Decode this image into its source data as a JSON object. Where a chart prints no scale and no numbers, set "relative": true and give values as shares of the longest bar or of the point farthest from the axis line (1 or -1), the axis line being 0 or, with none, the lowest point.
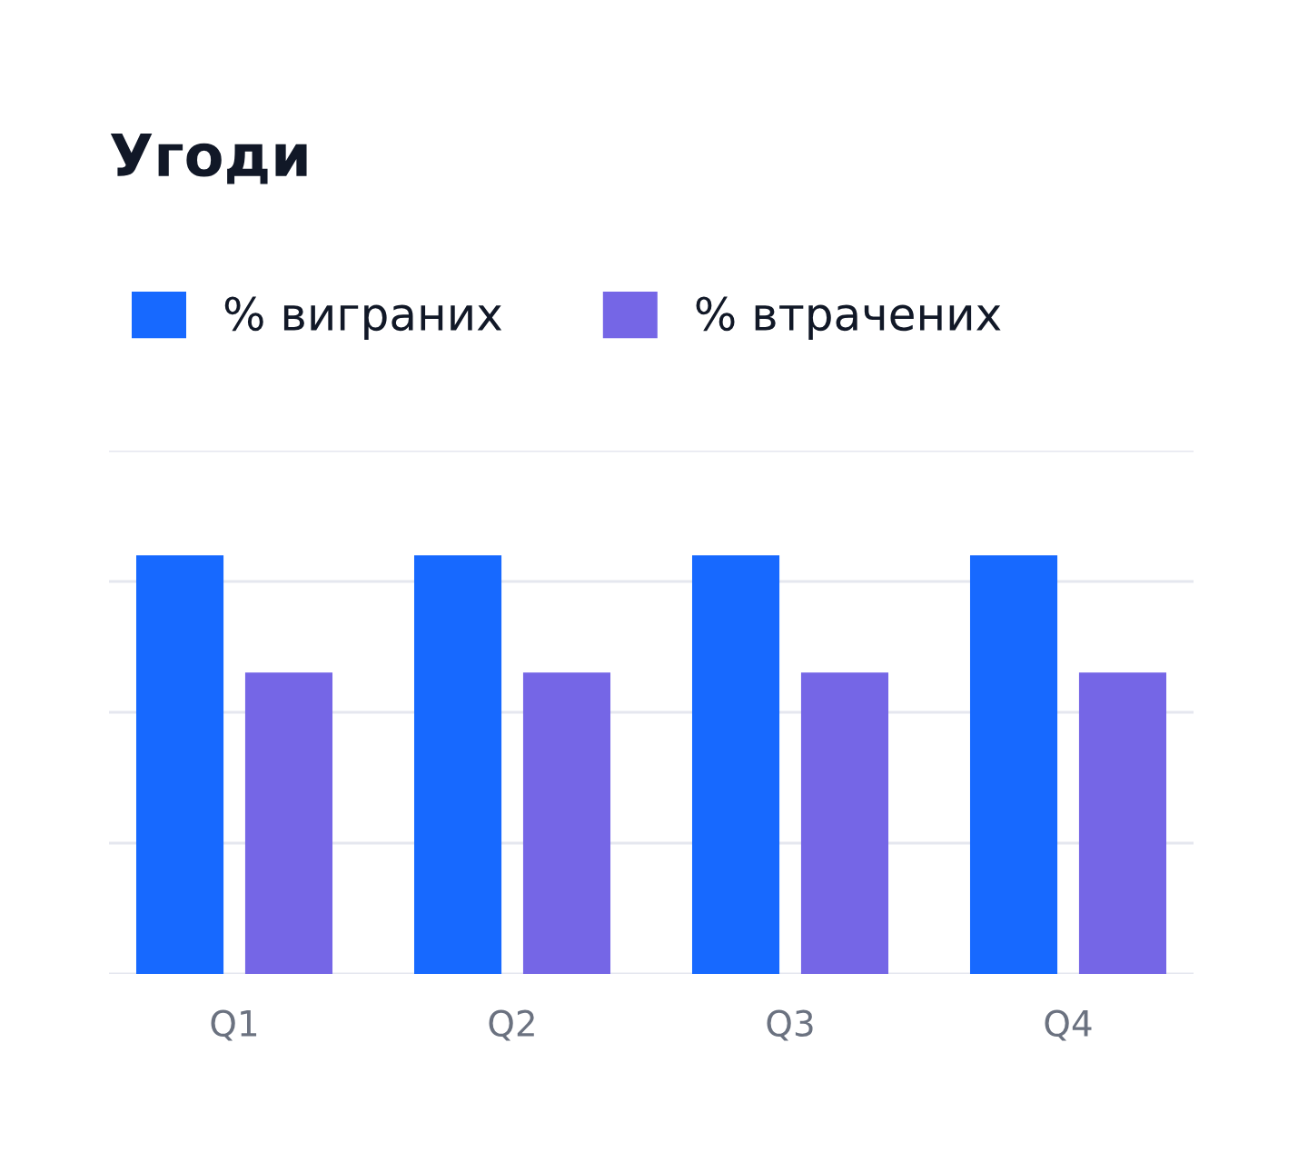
{
  "chart_data": {
    "type": "bar",
    "title": "Угоди",
    "categories": [
      "Q1",
      "Q2",
      "Q3",
      "Q4"
    ],
    "relative": true,
    "series": [
      {
        "name": "% виграних",
        "color": "#1769ff",
        "values": [
          1,
          1,
          1,
          1
        ]
      },
      {
        "name": "% втрачених",
        "color": "#7566e6",
        "values": [
          0.72,
          0.72,
          0.72,
          0.72
        ]
      }
    ],
    "grid": "y",
    "legend": "top left",
    "tick_labels": "x"
  }
}
